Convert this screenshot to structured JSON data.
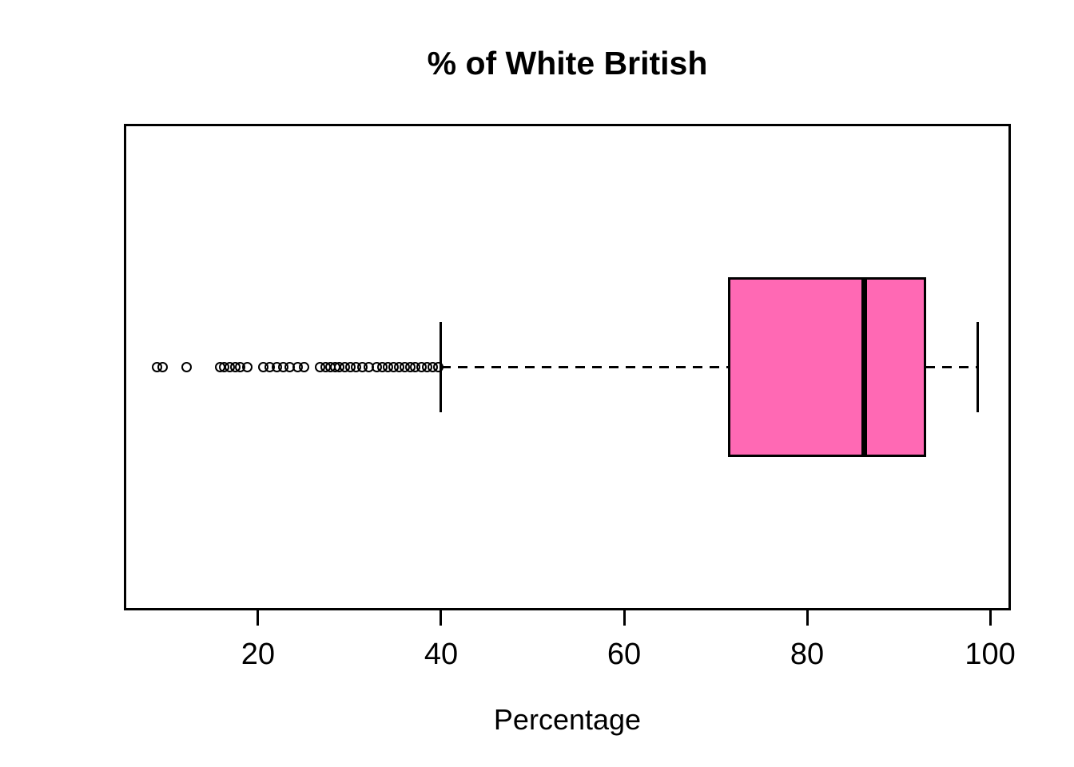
{
  "chart_data": {
    "type": "boxplot",
    "orientation": "horizontal",
    "title": "% of White British",
    "xlabel": "Percentage",
    "ylabel": "",
    "x_ticks": [
      20,
      40,
      60,
      80,
      100
    ],
    "xlim": [
      5.6,
      102.0
    ],
    "grid": false,
    "legend": false,
    "colors": {
      "box_fill": "#FF69B4",
      "box_border": "#000000",
      "median": "#000000",
      "whisker": "#000000",
      "outlier_stroke": "#000000",
      "background": "#ffffff",
      "text": "#000000"
    },
    "stats": {
      "whisker_low": 40.0,
      "q1": 71.5,
      "median": 86.2,
      "q3": 92.9,
      "whisker_high": 98.6
    },
    "outliers": [
      9.0,
      9.6,
      12.2,
      15.9,
      16.3,
      16.9,
      17.5,
      18.0,
      18.8,
      20.6,
      21.3,
      22.1,
      22.8,
      23.5,
      24.3,
      25.0,
      26.8,
      27.4,
      27.9,
      28.4,
      28.9,
      29.5,
      30.1,
      30.7,
      31.4,
      32.1,
      33.0,
      33.6,
      34.2,
      34.8,
      35.4,
      36.0,
      36.6,
      37.2,
      37.9,
      38.5,
      39.1,
      39.7
    ]
  }
}
